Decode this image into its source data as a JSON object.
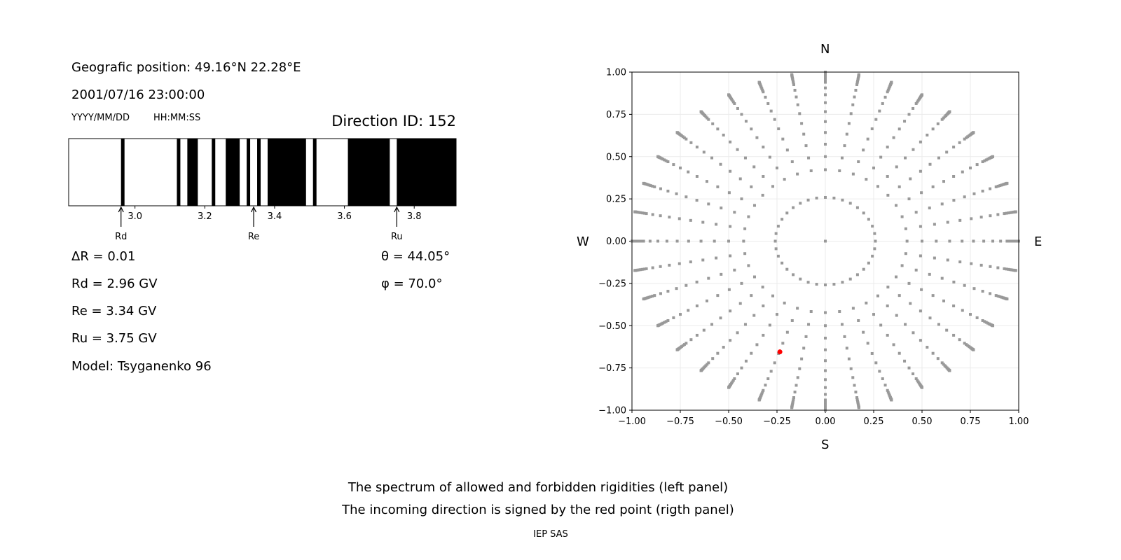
{
  "header": {
    "position": "Geografic position: 49.16°N 22.28°E",
    "datetime": "2001/07/16 23:00:00",
    "date_format": "YYYY/MM/DD",
    "time_format": "HH:MM:SS",
    "direction_id": "Direction ID: 152"
  },
  "params": {
    "delta_r": "ΔR = 0.01",
    "rd": "Rd = 2.96 GV",
    "re": "Re = 3.34 GV",
    "ru": "Ru = 3.75 GV",
    "model": "Model: Tsyganenko 96",
    "theta": "θ = 44.05°",
    "phi": "φ = 70.0°"
  },
  "chart_data": [
    {
      "type": "bar",
      "xlim": [
        2.81,
        3.92
      ],
      "xticks": [
        "3.0",
        "3.2",
        "3.4",
        "3.6",
        "3.8"
      ],
      "forbidden_bands": [
        [
          2.96,
          2.97
        ],
        [
          3.12,
          3.13
        ],
        [
          3.15,
          3.18
        ],
        [
          3.22,
          3.23
        ],
        [
          3.26,
          3.3
        ],
        [
          3.32,
          3.33
        ],
        [
          3.35,
          3.36
        ],
        [
          3.38,
          3.49
        ],
        [
          3.51,
          3.52
        ],
        [
          3.61,
          3.73
        ],
        [
          3.75,
          3.92
        ]
      ],
      "markers": [
        {
          "label": "Rd",
          "value": 2.96
        },
        {
          "label": "Re",
          "value": 3.34
        },
        {
          "label": "Ru",
          "value": 3.75
        }
      ],
      "colors": {
        "forbidden": "#000000",
        "allowed": "#ffffff"
      }
    },
    {
      "type": "scatter",
      "xlim": [
        -1,
        1
      ],
      "ylim": [
        -1,
        1
      ],
      "xticks": [
        "−1.00",
        "−0.75",
        "−0.50",
        "−0.25",
        "0.00",
        "0.25",
        "0.50",
        "0.75",
        "1.00"
      ],
      "yticks": [
        "−1.00",
        "−0.75",
        "−0.50",
        "−0.25",
        "0.00",
        "0.25",
        "0.50",
        "0.75",
        "1.00"
      ],
      "grid": true,
      "compass": {
        "n": "N",
        "s": "S",
        "w": "W",
        "e": "E"
      },
      "directions_grid": {
        "azimuth_step_deg": 10,
        "zenith_deg": [
          0,
          15,
          25,
          30,
          35,
          40,
          45,
          50,
          55,
          60,
          65,
          70,
          72,
          74,
          76,
          78,
          80,
          82,
          84,
          86,
          88,
          90
        ],
        "color": "#999999"
      },
      "incoming_point": {
        "x": -0.235,
        "y": -0.655,
        "color": "#ff0000"
      }
    }
  ],
  "footer": {
    "line1": "The spectrum of allowed and forbidden rigidities (left panel)",
    "line2": "The incoming direction is signed by the red point (rigth panel)",
    "credit": "IEP SAS"
  }
}
